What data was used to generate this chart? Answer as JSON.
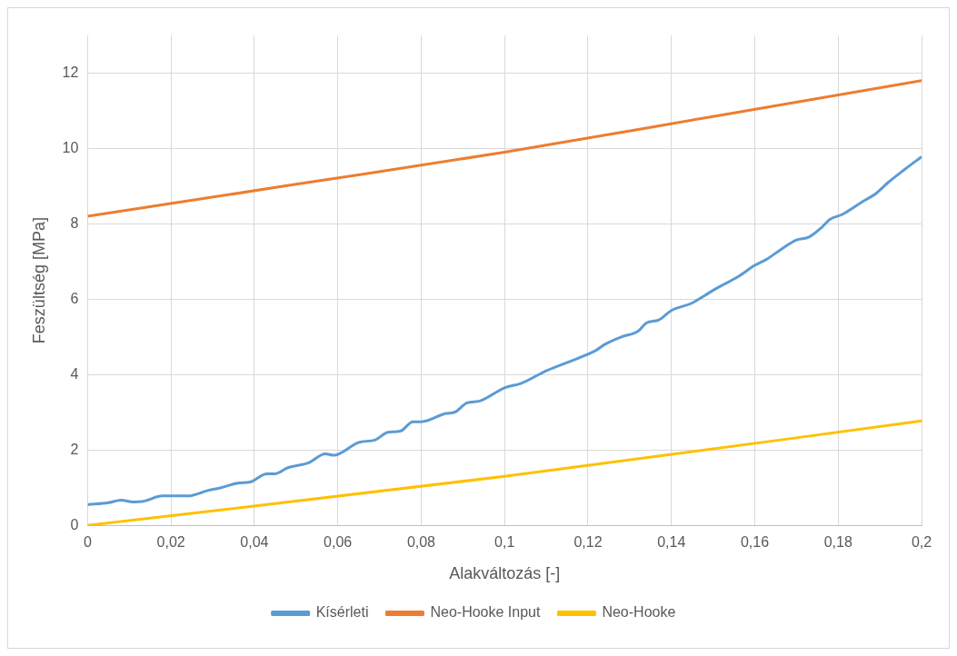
{
  "chart_data": {
    "type": "line",
    "xlabel": "Alakváltozás [-]",
    "ylabel": "Feszültség [MPa]",
    "xlim": [
      0,
      0.2
    ],
    "xticks": [
      0,
      {
        "value": 0.02,
        "label": "0,02"
      },
      {
        "value": 0.04,
        "label": "0,04"
      },
      {
        "value": 0.06,
        "label": "0,06"
      },
      {
        "value": 0.08,
        "label": "0,08"
      },
      {
        "value": 0.1,
        "label": "0,1"
      },
      {
        "value": 0.12,
        "label": "0,12"
      },
      {
        "value": 0.14,
        "label": "0,14"
      },
      {
        "value": 0.16,
        "label": "0,16"
      },
      {
        "value": 0.18,
        "label": "0,18"
      },
      {
        "value": 0.2,
        "label": "0,2"
      }
    ],
    "ylim": [
      0,
      13
    ],
    "yticks": [
      0,
      2,
      4,
      6,
      8,
      10,
      12
    ],
    "grid": true,
    "legend": "bottom",
    "marker": "none",
    "line_style": "solid",
    "series": [
      {
        "name": "Kísérleti",
        "color": "#5b9bd5",
        "x": [
          0,
          0.005,
          0.008,
          0.011,
          0.013,
          0.018,
          0.021,
          0.024,
          0.029,
          0.032,
          0.036,
          0.039,
          0.043,
          0.045,
          0.048,
          0.053,
          0.057,
          0.059,
          0.065,
          0.069,
          0.072,
          0.075,
          0.078,
          0.08,
          0.086,
          0.088,
          0.091,
          0.094,
          0.1,
          0.104,
          0.11,
          0.118,
          0.122,
          0.124,
          0.128,
          0.132,
          0.134,
          0.137,
          0.14,
          0.145,
          0.148,
          0.151,
          0.156,
          0.16,
          0.163,
          0.166,
          0.17,
          0.173,
          0.176,
          0.178,
          0.181,
          0.186,
          0.189,
          0.192,
          0.196,
          0.2
        ],
        "values": [
          0.55,
          0.6,
          0.67,
          0.62,
          0.63,
          0.78,
          0.78,
          0.78,
          0.93,
          1.0,
          1.12,
          1.15,
          1.37,
          1.37,
          1.53,
          1.66,
          1.9,
          1.86,
          2.2,
          2.27,
          2.47,
          2.5,
          2.75,
          2.75,
          2.97,
          3.0,
          3.25,
          3.3,
          3.65,
          3.77,
          4.1,
          4.45,
          4.65,
          4.8,
          5.0,
          5.15,
          5.37,
          5.45,
          5.7,
          5.9,
          6.1,
          6.3,
          6.6,
          6.9,
          7.07,
          7.3,
          7.57,
          7.65,
          7.9,
          8.12,
          8.25,
          8.6,
          8.8,
          9.1,
          9.45,
          9.78
        ]
      },
      {
        "name": "Neo-Hooke Input",
        "color": "#ed7d31",
        "x": [
          0,
          0.05,
          0.1,
          0.15,
          0.2
        ],
        "values": [
          8.2,
          9.05,
          9.9,
          10.85,
          11.8
        ]
      },
      {
        "name": "Neo-Hooke",
        "color": "#ffc000",
        "x": [
          0,
          0.1,
          0.2
        ],
        "values": [
          0,
          1.3,
          2.77
        ]
      }
    ]
  }
}
